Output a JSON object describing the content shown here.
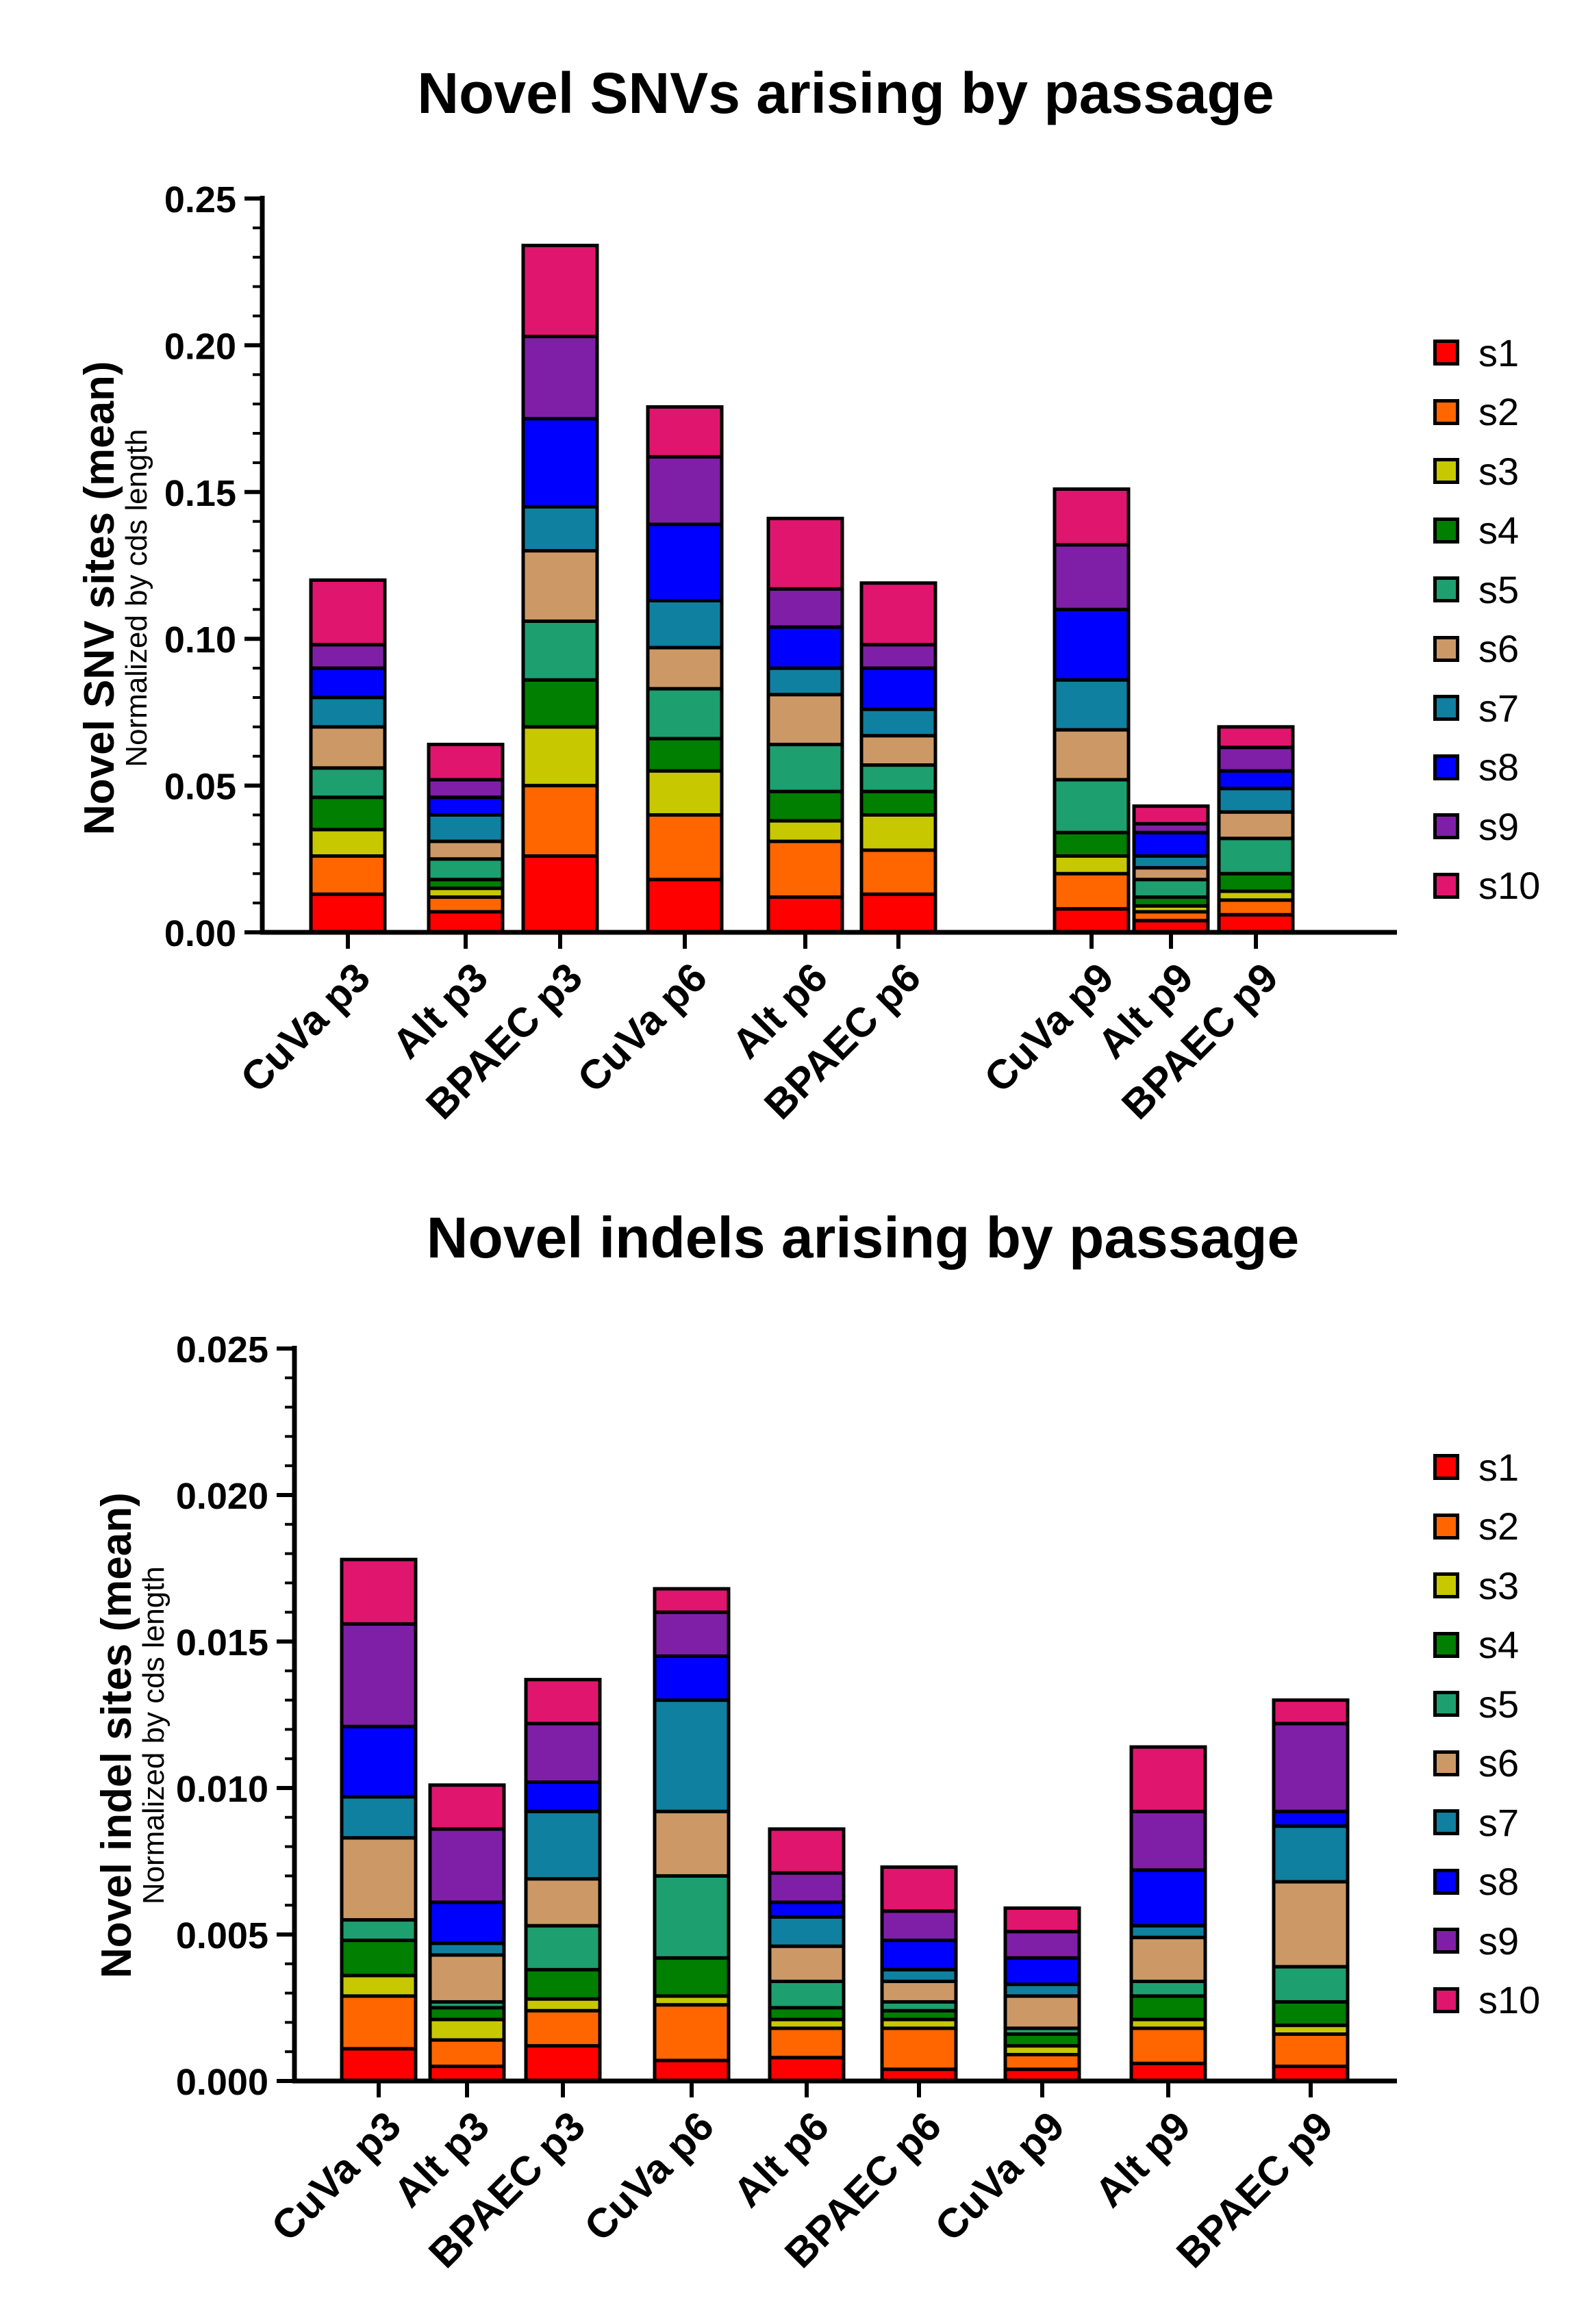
{
  "chart_data": [
    {
      "type": "bar",
      "stacked": true,
      "title": "Novel SNVs arising by passage",
      "ylabel": "Novel SNV sites (mean)",
      "ylabel_sub": "Normalized by cds length",
      "xlabel": "",
      "ylim": [
        0,
        0.25
      ],
      "yticks": [
        "0.00",
        "0.05",
        "0.10",
        "0.15",
        "0.20",
        "0.25"
      ],
      "categories": [
        "CuVa p3",
        "Alt p3",
        "BPAEC p3",
        "CuVa p6",
        "Alt p6",
        "BPAEC p6",
        "CuVa p9",
        "Alt p9",
        "BPAEC p9"
      ],
      "legend_position": "right",
      "series": [
        {
          "name": "s1",
          "values": [
            0.013,
            0.007,
            0.026,
            0.018,
            0.012,
            0.013,
            0.008,
            0.004,
            0.006
          ]
        },
        {
          "name": "s2",
          "values": [
            0.013,
            0.005,
            0.024,
            0.022,
            0.019,
            0.015,
            0.012,
            0.003,
            0.005
          ]
        },
        {
          "name": "s3",
          "values": [
            0.009,
            0.003,
            0.02,
            0.015,
            0.007,
            0.012,
            0.006,
            0.002,
            0.003
          ]
        },
        {
          "name": "s4",
          "values": [
            0.011,
            0.003,
            0.016,
            0.011,
            0.01,
            0.008,
            0.008,
            0.003,
            0.006
          ]
        },
        {
          "name": "s5",
          "values": [
            0.01,
            0.007,
            0.02,
            0.017,
            0.016,
            0.009,
            0.018,
            0.006,
            0.012
          ]
        },
        {
          "name": "s6",
          "values": [
            0.014,
            0.006,
            0.024,
            0.014,
            0.017,
            0.01,
            0.017,
            0.004,
            0.009
          ]
        },
        {
          "name": "s7",
          "values": [
            0.01,
            0.009,
            0.015,
            0.016,
            0.009,
            0.009,
            0.017,
            0.004,
            0.008
          ]
        },
        {
          "name": "s8",
          "values": [
            0.01,
            0.006,
            0.03,
            0.026,
            0.014,
            0.014,
            0.024,
            0.008,
            0.006
          ]
        },
        {
          "name": "s9",
          "values": [
            0.008,
            0.006,
            0.028,
            0.023,
            0.013,
            0.008,
            0.022,
            0.003,
            0.008
          ]
        },
        {
          "name": "s10",
          "values": [
            0.022,
            0.012,
            0.031,
            0.017,
            0.024,
            0.021,
            0.019,
            0.006,
            0.007
          ]
        }
      ]
    },
    {
      "type": "bar",
      "stacked": true,
      "title": "Novel indels arising by passage",
      "ylabel": "Novel indel sites (mean)",
      "ylabel_sub": "Normalized by cds length",
      "xlabel": "",
      "ylim": [
        0,
        0.025
      ],
      "yticks": [
        "0.000",
        "0.005",
        "0.010",
        "0.015",
        "0.020",
        "0.025"
      ],
      "categories": [
        "CuVa p3",
        "Alt p3",
        "BPAEC p3",
        "CuVa p6",
        "Alt p6",
        "BPAEC p6",
        "CuVa p9",
        "Alt p9",
        "BPAEC p9"
      ],
      "legend_position": "right",
      "series": [
        {
          "name": "s1",
          "values": [
            0.0011,
            0.0005,
            0.0012,
            0.0007,
            0.0008,
            0.0004,
            0.0004,
            0.0006,
            0.0005
          ]
        },
        {
          "name": "s2",
          "values": [
            0.0018,
            0.0009,
            0.0012,
            0.0019,
            0.001,
            0.0014,
            0.0005,
            0.0012,
            0.0011
          ]
        },
        {
          "name": "s3",
          "values": [
            0.0007,
            0.0007,
            0.0004,
            0.0003,
            0.0003,
            0.0003,
            0.0003,
            0.0003,
            0.0003
          ]
        },
        {
          "name": "s4",
          "values": [
            0.0012,
            0.0004,
            0.001,
            0.0013,
            0.0004,
            0.0003,
            0.0004,
            0.0008,
            0.0008
          ]
        },
        {
          "name": "s5",
          "values": [
            0.0007,
            0.0002,
            0.0015,
            0.0028,
            0.0009,
            0.0003,
            0.0002,
            0.0005,
            0.0012
          ]
        },
        {
          "name": "s6",
          "values": [
            0.0028,
            0.0016,
            0.0016,
            0.0022,
            0.0012,
            0.0007,
            0.0011,
            0.0015,
            0.0029
          ]
        },
        {
          "name": "s7",
          "values": [
            0.0014,
            0.0004,
            0.0023,
            0.0038,
            0.001,
            0.0004,
            0.0004,
            0.0004,
            0.0019
          ]
        },
        {
          "name": "s8",
          "values": [
            0.0024,
            0.0014,
            0.001,
            0.0015,
            0.0005,
            0.001,
            0.0009,
            0.0019,
            0.0005
          ]
        },
        {
          "name": "s9",
          "values": [
            0.0035,
            0.0025,
            0.002,
            0.0015,
            0.001,
            0.001,
            0.0009,
            0.002,
            0.003
          ]
        },
        {
          "name": "s10",
          "values": [
            0.0022,
            0.0015,
            0.0015,
            0.0008,
            0.0015,
            0.0015,
            0.0008,
            0.0022,
            0.0008
          ]
        }
      ]
    }
  ],
  "colors": {
    "s1": "#fe0000",
    "s2": "#ff6600",
    "s3": "#c8c800",
    "s4": "#007f00",
    "s5": "#1e9f6f",
    "s6": "#cc9966",
    "s7": "#1080a0",
    "s8": "#0000ff",
    "s9": "#7f1fa7",
    "s10": "#e0166e"
  }
}
